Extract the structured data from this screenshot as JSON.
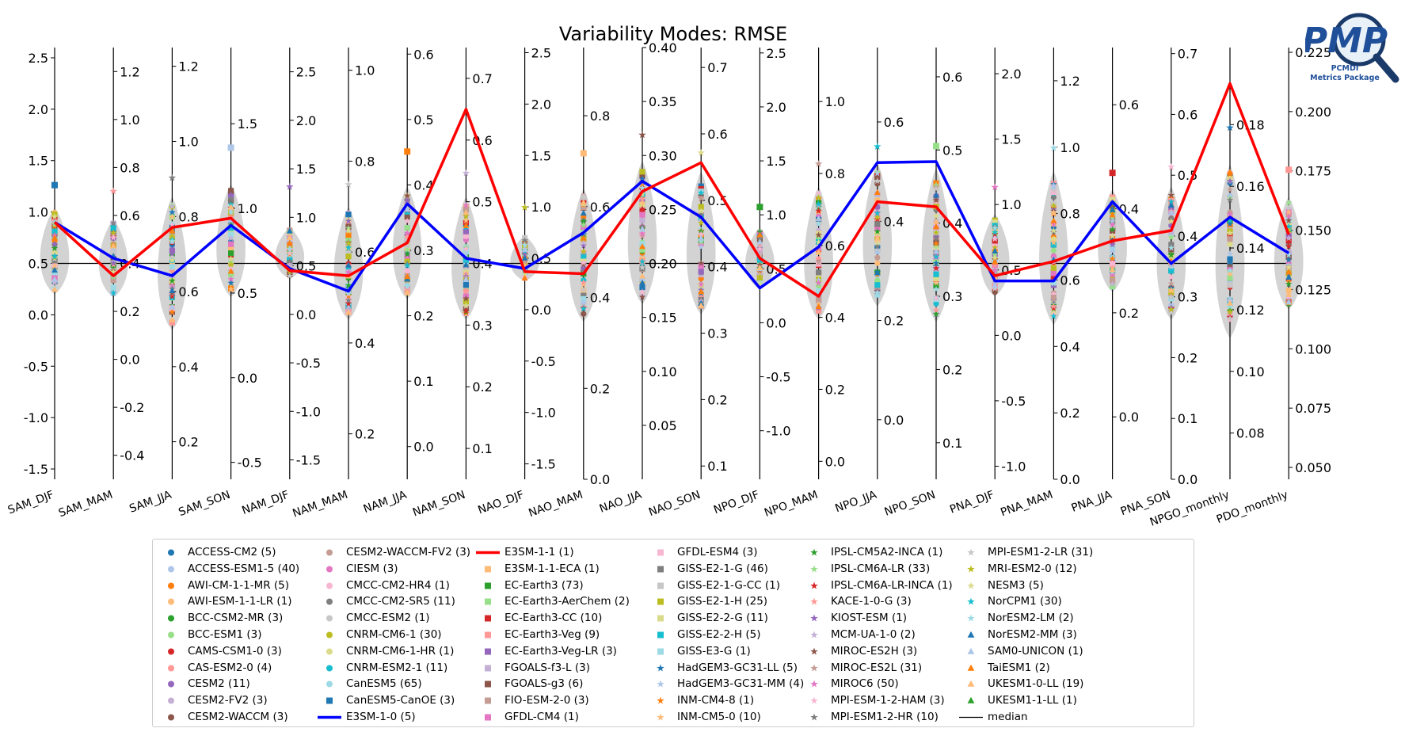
{
  "chart_data": {
    "type": "parallel-coordinate",
    "title": "Variability Modes: RMSE",
    "axes": [
      {
        "name": "SAM_DJF",
        "min": -1.6,
        "max": 2.6,
        "ticks": [
          -1.5,
          -1.0,
          -0.5,
          0.0,
          0.5,
          1.0,
          1.5,
          2.0,
          2.5
        ],
        "side": "left"
      },
      {
        "name": "SAM_MAM",
        "min": -0.5,
        "max": 1.3,
        "ticks": [
          -0.4,
          -0.2,
          0.0,
          0.2,
          0.4,
          0.6,
          0.8,
          1.0,
          1.2
        ],
        "side": "right"
      },
      {
        "name": "SAM_JJA",
        "min": 0.1,
        "max": 1.25,
        "ticks": [
          0.2,
          0.4,
          0.6,
          0.8,
          1.0,
          1.2
        ],
        "side": "right"
      },
      {
        "name": "SAM_SON",
        "min": -0.6,
        "max": 1.95,
        "ticks": [
          -0.5,
          0.0,
          0.5,
          1.0,
          1.5
        ],
        "side": "right"
      },
      {
        "name": "NAM_DJF",
        "min": -1.7,
        "max": 2.75,
        "ticks": [
          -1.5,
          -1.0,
          -0.5,
          0.0,
          0.5,
          1.0,
          1.5,
          2.0,
          2.5
        ],
        "side": "right"
      },
      {
        "name": "NAM_MAM",
        "min": 0.1,
        "max": 1.05,
        "ticks": [
          0.2,
          0.4,
          0.6,
          0.8,
          1.0
        ],
        "side": "right"
      },
      {
        "name": "NAM_JJA",
        "min": -0.05,
        "max": 0.61,
        "ticks": [
          0.0,
          0.1,
          0.2,
          0.3,
          0.4,
          0.5,
          0.6
        ],
        "side": "right"
      },
      {
        "name": "NAM_SON",
        "min": 0.05,
        "max": 0.75,
        "ticks": [
          0.1,
          0.2,
          0.3,
          0.4,
          0.5,
          0.6,
          0.7
        ],
        "side": "right"
      },
      {
        "name": "NAO_DJF",
        "min": -1.65,
        "max": 2.55,
        "ticks": [
          -1.5,
          -1.0,
          -0.5,
          0.0,
          0.5,
          1.0,
          1.5,
          2.0,
          2.5
        ],
        "side": "right"
      },
      {
        "name": "NAO_MAM",
        "min": 0.0,
        "max": 0.95,
        "ticks": [
          0.0,
          0.2,
          0.4,
          0.6,
          0.8
        ],
        "side": "right"
      },
      {
        "name": "NAO_JJA",
        "min": 0.0,
        "max": 0.4,
        "ticks": [
          0.05,
          0.1,
          0.15,
          0.2,
          0.25,
          0.3,
          0.35,
          0.4
        ],
        "side": "right"
      },
      {
        "name": "NAO_SON",
        "min": 0.08,
        "max": 0.73,
        "ticks": [
          0.1,
          0.2,
          0.3,
          0.4,
          0.5,
          0.6,
          0.7
        ],
        "side": "right"
      },
      {
        "name": "NPO_DJF",
        "min": -1.45,
        "max": 2.55,
        "ticks": [
          -1.0,
          -0.5,
          0.0,
          0.5,
          1.0,
          1.5,
          2.0,
          2.5
        ],
        "side": "right"
      },
      {
        "name": "NPO_MAM",
        "min": -0.05,
        "max": 1.15,
        "ticks": [
          0.0,
          0.2,
          0.4,
          0.6,
          0.8,
          1.0
        ],
        "side": "right"
      },
      {
        "name": "NPO_JJA",
        "min": -0.12,
        "max": 0.75,
        "ticks": [
          0.0,
          0.2,
          0.4,
          0.6
        ],
        "side": "right"
      },
      {
        "name": "NPO_SON",
        "min": 0.05,
        "max": 0.64,
        "ticks": [
          0.1,
          0.2,
          0.3,
          0.4,
          0.5,
          0.6
        ],
        "side": "right"
      },
      {
        "name": "PNA_DJF",
        "min": -1.1,
        "max": 2.2,
        "ticks": [
          -1.0,
          -0.5,
          0.0,
          0.5,
          1.0,
          1.5,
          2.0
        ],
        "side": "right"
      },
      {
        "name": "PNA_MAM",
        "min": 0.0,
        "max": 1.3,
        "ticks": [
          0.0,
          0.2,
          0.4,
          0.6,
          0.8,
          1.0,
          1.2
        ],
        "side": "right"
      },
      {
        "name": "PNA_JJA",
        "min": -0.12,
        "max": 0.71,
        "ticks": [
          0.0,
          0.2,
          0.4,
          0.6
        ],
        "side": "right"
      },
      {
        "name": "PNA_SON",
        "min": 0.0,
        "max": 0.71,
        "ticks": [
          0.0,
          0.1,
          0.2,
          0.3,
          0.4,
          0.5,
          0.6,
          0.7
        ],
        "side": "right"
      },
      {
        "name": "NPGO_monthly",
        "min": 0.065,
        "max": 0.205,
        "ticks": [
          0.08,
          0.1,
          0.12,
          0.14,
          0.16,
          0.18
        ],
        "side": "right"
      },
      {
        "name": "PDO_monthly",
        "min": 0.045,
        "max": 0.227,
        "ticks": [
          0.05,
          0.075,
          0.1,
          0.125,
          0.15,
          0.175,
          0.2,
          0.225
        ],
        "side": "right"
      }
    ],
    "tick_labels": [
      [
        "-1.5",
        "-1.0",
        "-0.5",
        "0.0",
        "0.5",
        "1.0",
        "1.5",
        "2.0",
        "2.5"
      ],
      [
        "-0.4",
        "-0.2",
        "0.0",
        "0.2",
        "0.4",
        "0.6",
        "0.8",
        "1.0",
        "1.2"
      ],
      [
        "0.2",
        "0.4",
        "0.6",
        "0.8",
        "1.0",
        "1.2"
      ],
      [
        "-0.5",
        "0.0",
        "0.5",
        "1.0",
        "1.5"
      ],
      [
        "-1.5",
        "-1.0",
        "-0.5",
        "0.0",
        "0.5",
        "1.0",
        "1.5",
        "2.0",
        "2.5"
      ],
      [
        "0.2",
        "0.4",
        "0.6",
        "0.8",
        "1.0"
      ],
      [
        "0.0",
        "0.1",
        "0.2",
        "0.3",
        "0.4",
        "0.5",
        "0.6"
      ],
      [
        "0.1",
        "0.2",
        "0.3",
        "0.4",
        "0.5",
        "0.6",
        "0.7"
      ],
      [
        "-1.5",
        "-1.0",
        "-0.5",
        "0.0",
        "0.5",
        "1.0",
        "1.5",
        "2.0",
        "2.5"
      ],
      [
        "0.0",
        "0.2",
        "0.4",
        "0.6",
        "0.8"
      ],
      [
        "0.05",
        "0.10",
        "0.15",
        "0.20",
        "0.25",
        "0.30",
        "0.35",
        "0.40"
      ],
      [
        "0.1",
        "0.2",
        "0.3",
        "0.4",
        "0.5",
        "0.6",
        "0.7"
      ],
      [
        "-1.0",
        "-0.5",
        "0.0",
        "0.5",
        "1.0",
        "1.5",
        "2.0",
        "2.5"
      ],
      [
        "0.0",
        "0.2",
        "0.4",
        "0.6",
        "0.8",
        "1.0"
      ],
      [
        "0.0",
        "0.2",
        "0.4",
        "0.6"
      ],
      [
        "0.1",
        "0.2",
        "0.3",
        "0.4",
        "0.5",
        "0.6"
      ],
      [
        "-1.0",
        "-0.5",
        "0.0",
        "0.5",
        "1.0",
        "1.5",
        "2.0"
      ],
      [
        "0.0",
        "0.2",
        "0.4",
        "0.6",
        "0.8",
        "1.0",
        "1.2"
      ],
      [
        "0.0",
        "0.2",
        "0.4",
        "0.6"
      ],
      [
        "0.0",
        "0.1",
        "0.2",
        "0.3",
        "0.4",
        "0.5",
        "0.6",
        "0.7"
      ],
      [
        "0.08",
        "0.10",
        "0.12",
        "0.14",
        "0.16",
        "0.18"
      ],
      [
        "0.050",
        "0.075",
        "0.100",
        "0.125",
        "0.150",
        "0.175",
        "0.200",
        "0.225"
      ]
    ],
    "median_normalized": 0.5,
    "series": [
      {
        "name": "E3SM-1-0 (5)",
        "color": "#0000ff",
        "normalized": [
          0.9,
          0.55,
          0.38,
          0.87,
          0.45,
          0.23,
          1.08,
          0.55,
          0.45,
          0.8,
          1.3,
          0.95,
          0.26,
          0.66,
          1.48,
          1.49,
          0.33,
          0.33,
          1.1,
          0.5,
          0.95,
          0.6
        ]
      },
      {
        "name": "E3SM-1-1 (1)",
        "color": "#ff0000",
        "normalized": [
          0.9,
          0.38,
          0.85,
          0.94,
          0.43,
          0.38,
          0.7,
          2.0,
          0.42,
          0.4,
          1.2,
          1.48,
          0.55,
          0.18,
          1.1,
          1.05,
          0.38,
          0.52,
          0.72,
          0.82,
          2.25,
          0.78
        ]
      }
    ],
    "models": [
      "ACCESS-CM2 (5)",
      "ACCESS-ESM1-5 (40)",
      "AWI-CM-1-1-MR (5)",
      "AWI-ESM-1-1-LR (1)",
      "BCC-CSM2-MR (3)",
      "BCC-ESM1 (3)",
      "CAMS-CSM1-0 (3)",
      "CAS-ESM2-0 (4)",
      "CESM2 (11)",
      "CESM2-FV2 (3)",
      "CESM2-WACCM (3)",
      "CESM2-WACCM-FV2 (3)",
      "CIESM (3)",
      "CMCC-CM2-HR4 (1)",
      "CMCC-CM2-SR5 (11)",
      "CMCC-ESM2 (1)",
      "CNRM-CM6-1 (30)",
      "CNRM-CM6-1-HR (1)",
      "CNRM-ESM2-1 (11)",
      "CanESM5 (65)",
      "CanESM5-CanOE (3)",
      "E3SM-1-0 (5)",
      "E3SM-1-1 (1)",
      "E3SM-1-1-ECA (1)",
      "EC-Earth3 (73)",
      "EC-Earth3-AerChem (2)",
      "EC-Earth3-CC (10)",
      "EC-Earth3-Veg (9)",
      "EC-Earth3-Veg-LR (3)",
      "FGOALS-f3-L (3)",
      "FGOALS-g3 (6)",
      "FIO-ESM-2-0 (3)",
      "GFDL-CM4 (1)",
      "GFDL-ESM4 (3)",
      "GISS-E2-1-G (46)",
      "GISS-E2-1-G-CC (1)",
      "GISS-E2-1-H (25)",
      "GISS-E2-2-G (11)",
      "GISS-E2-2-H (5)",
      "GISS-E3-G (1)",
      "HadGEM3-GC31-LL (5)",
      "HadGEM3-GC31-MM (4)",
      "INM-CM4-8 (1)",
      "INM-CM5-0 (10)",
      "IPSL-CM5A2-INCA (1)",
      "IPSL-CM6A-LR (33)",
      "IPSL-CM6A-LR-INCA (1)",
      "KACE-1-0-G (3)",
      "KIOST-ESM (1)",
      "MCM-UA-1-0 (2)",
      "MIROC-ES2H (3)",
      "MIROC-ES2L (31)",
      "MIROC6 (50)",
      "MPI-ESM-1-2-HAM (3)",
      "MPI-ESM1-2-HR (10)",
      "MPI-ESM1-2-LR (31)",
      "MRI-ESM2-0 (12)",
      "NESM3 (5)",
      "NorCPM1 (30)",
      "NorESM2-LM (2)",
      "NorESM2-MM (3)",
      "SAM0-UNICON (1)",
      "TaiESM1 (2)",
      "UKESM1-0-LL (19)",
      "UKESM1-1-LL (1)",
      "median"
    ],
    "legend_position": "lower-center"
  },
  "legend": {
    "columns": [
      [
        {
          "label": "ACCESS-CM2 (5)",
          "color": "#1f77b4",
          "marker": "circle"
        },
        {
          "label": "ACCESS-ESM1-5 (40)",
          "color": "#aec7e8",
          "marker": "circle"
        },
        {
          "label": "AWI-CM-1-1-MR (5)",
          "color": "#ff7f0e",
          "marker": "circle"
        },
        {
          "label": "AWI-ESM-1-1-LR (1)",
          "color": "#ffbb78",
          "marker": "circle"
        },
        {
          "label": "BCC-CSM2-MR (3)",
          "color": "#2ca02c",
          "marker": "circle"
        },
        {
          "label": "BCC-ESM1 (3)",
          "color": "#98df8a",
          "marker": "circle"
        },
        {
          "label": "CAMS-CSM1-0 (3)",
          "color": "#d62728",
          "marker": "circle"
        },
        {
          "label": "CAS-ESM2-0 (4)",
          "color": "#ff9896",
          "marker": "circle"
        },
        {
          "label": "CESM2 (11)",
          "color": "#9467bd",
          "marker": "circle"
        },
        {
          "label": "CESM2-FV2 (3)",
          "color": "#c5b0d5",
          "marker": "circle"
        },
        {
          "label": "CESM2-WACCM (3)",
          "color": "#8c564b",
          "marker": "circle"
        }
      ],
      [
        {
          "label": "CESM2-WACCM-FV2 (3)",
          "color": "#c49c94",
          "marker": "circle"
        },
        {
          "label": "CIESM (3)",
          "color": "#e377c2",
          "marker": "circle"
        },
        {
          "label": "CMCC-CM2-HR4 (1)",
          "color": "#f7b6d2",
          "marker": "circle"
        },
        {
          "label": "CMCC-CM2-SR5 (11)",
          "color": "#7f7f7f",
          "marker": "circle"
        },
        {
          "label": "CMCC-ESM2 (1)",
          "color": "#c7c7c7",
          "marker": "circle"
        },
        {
          "label": "CNRM-CM6-1 (30)",
          "color": "#bcbd22",
          "marker": "circle"
        },
        {
          "label": "CNRM-CM6-1-HR (1)",
          "color": "#dbdb8d",
          "marker": "circle"
        },
        {
          "label": "CNRM-ESM2-1 (11)",
          "color": "#17becf",
          "marker": "circle"
        },
        {
          "label": "CanESM5 (65)",
          "color": "#9edae5",
          "marker": "circle"
        },
        {
          "label": "CanESM5-CanOE (3)",
          "color": "#1f77b4",
          "marker": "square"
        },
        {
          "label": "E3SM-1-0 (5)",
          "color": "#0000ff",
          "marker": "line"
        }
      ],
      [
        {
          "label": "E3SM-1-1 (1)",
          "color": "#ff0000",
          "marker": "line"
        },
        {
          "label": "E3SM-1-1-ECA (1)",
          "color": "#ffbb78",
          "marker": "square"
        },
        {
          "label": "EC-Earth3 (73)",
          "color": "#2ca02c",
          "marker": "square"
        },
        {
          "label": "EC-Earth3-AerChem (2)",
          "color": "#98df8a",
          "marker": "square"
        },
        {
          "label": "EC-Earth3-CC (10)",
          "color": "#d62728",
          "marker": "square"
        },
        {
          "label": "EC-Earth3-Veg (9)",
          "color": "#ff9896",
          "marker": "square"
        },
        {
          "label": "EC-Earth3-Veg-LR (3)",
          "color": "#9467bd",
          "marker": "square"
        },
        {
          "label": "FGOALS-f3-L (3)",
          "color": "#c5b0d5",
          "marker": "square"
        },
        {
          "label": "FGOALS-g3 (6)",
          "color": "#8c564b",
          "marker": "square"
        },
        {
          "label": "FIO-ESM-2-0 (3)",
          "color": "#c49c94",
          "marker": "square"
        },
        {
          "label": "GFDL-CM4 (1)",
          "color": "#e377c2",
          "marker": "square"
        }
      ],
      [
        {
          "label": "GFDL-ESM4 (3)",
          "color": "#f7b6d2",
          "marker": "square"
        },
        {
          "label": "GISS-E2-1-G (46)",
          "color": "#7f7f7f",
          "marker": "square"
        },
        {
          "label": "GISS-E2-1-G-CC (1)",
          "color": "#c7c7c7",
          "marker": "square"
        },
        {
          "label": "GISS-E2-1-H (25)",
          "color": "#bcbd22",
          "marker": "square"
        },
        {
          "label": "GISS-E2-2-G (11)",
          "color": "#dbdb8d",
          "marker": "square"
        },
        {
          "label": "GISS-E2-2-H (5)",
          "color": "#17becf",
          "marker": "square"
        },
        {
          "label": "GISS-E3-G (1)",
          "color": "#9edae5",
          "marker": "square"
        },
        {
          "label": "HadGEM3-GC31-LL (5)",
          "color": "#1f77b4",
          "marker": "star"
        },
        {
          "label": "HadGEM3-GC31-MM (4)",
          "color": "#aec7e8",
          "marker": "star"
        },
        {
          "label": "INM-CM4-8 (1)",
          "color": "#ff7f0e",
          "marker": "star"
        },
        {
          "label": "INM-CM5-0 (10)",
          "color": "#ffbb78",
          "marker": "star"
        }
      ],
      [
        {
          "label": "IPSL-CM5A2-INCA (1)",
          "color": "#2ca02c",
          "marker": "star"
        },
        {
          "label": "IPSL-CM6A-LR (33)",
          "color": "#98df8a",
          "marker": "star"
        },
        {
          "label": "IPSL-CM6A-LR-INCA (1)",
          "color": "#d62728",
          "marker": "star"
        },
        {
          "label": "KACE-1-0-G (3)",
          "color": "#ff9896",
          "marker": "star"
        },
        {
          "label": "KIOST-ESM (1)",
          "color": "#9467bd",
          "marker": "star"
        },
        {
          "label": "MCM-UA-1-0 (2)",
          "color": "#c5b0d5",
          "marker": "star"
        },
        {
          "label": "MIROC-ES2H (3)",
          "color": "#8c564b",
          "marker": "star"
        },
        {
          "label": "MIROC-ES2L (31)",
          "color": "#c49c94",
          "marker": "star"
        },
        {
          "label": "MIROC6 (50)",
          "color": "#e377c2",
          "marker": "star"
        },
        {
          "label": "MPI-ESM-1-2-HAM (3)",
          "color": "#f7b6d2",
          "marker": "star"
        },
        {
          "label": "MPI-ESM1-2-HR (10)",
          "color": "#7f7f7f",
          "marker": "star"
        }
      ],
      [
        {
          "label": "MPI-ESM1-2-LR (31)",
          "color": "#c7c7c7",
          "marker": "star"
        },
        {
          "label": "MRI-ESM2-0 (12)",
          "color": "#bcbd22",
          "marker": "star"
        },
        {
          "label": "NESM3 (5)",
          "color": "#dbdb8d",
          "marker": "star"
        },
        {
          "label": "NorCPM1 (30)",
          "color": "#17becf",
          "marker": "star"
        },
        {
          "label": "NorESM2-LM (2)",
          "color": "#9edae5",
          "marker": "star"
        },
        {
          "label": "NorESM2-MM (3)",
          "color": "#1f77b4",
          "marker": "triangle"
        },
        {
          "label": "SAM0-UNICON (1)",
          "color": "#aec7e8",
          "marker": "triangle"
        },
        {
          "label": "TaiESM1 (2)",
          "color": "#ff7f0e",
          "marker": "triangle"
        },
        {
          "label": "UKESM1-0-LL (19)",
          "color": "#ffbb78",
          "marker": "triangle"
        },
        {
          "label": "UKESM1-1-LL (1)",
          "color": "#2ca02c",
          "marker": "triangle"
        },
        {
          "label": "median",
          "color": "#000000",
          "marker": "thinline"
        }
      ]
    ]
  },
  "logo": {
    "big_text": "PMP",
    "line1": "PCMDI",
    "line2": "Metrics Package"
  },
  "palette": [
    "#1f77b4",
    "#aec7e8",
    "#ff7f0e",
    "#ffbb78",
    "#2ca02c",
    "#98df8a",
    "#d62728",
    "#ff9896",
    "#9467bd",
    "#c5b0d5",
    "#8c564b",
    "#c49c94",
    "#e377c2",
    "#f7b6d2",
    "#7f7f7f",
    "#c7c7c7",
    "#bcbd22",
    "#dbdb8d",
    "#17becf",
    "#9edae5"
  ]
}
